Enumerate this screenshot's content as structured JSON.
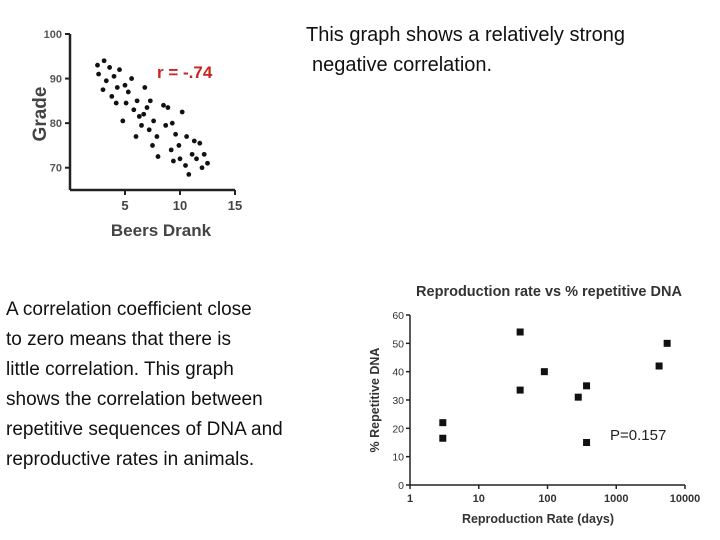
{
  "texts": {
    "top_caption": [
      "This graph shows a relatively strong",
      "negative correlation."
    ],
    "bottom_caption": [
      "A correlation coefficient close",
      "to zero means that there is",
      "little correlation. This graph",
      "shows the correlation between",
      "repetitive sequences of DNA and",
      "reproductive rates in animals."
    ]
  },
  "chart_data": [
    {
      "type": "scatter",
      "title": "",
      "xlabel": "Beers Drank",
      "ylabel": "Grade",
      "xlim": [
        0,
        15
      ],
      "ylim": [
        65,
        100
      ],
      "x_ticks": [
        5,
        10,
        15
      ],
      "y_ticks": [
        70,
        80,
        90,
        100
      ],
      "annotation": "r = -.74",
      "annotation_color": "#cc2222",
      "marker_color": "#111111",
      "grid": false,
      "points": [
        [
          2.5,
          93.0
        ],
        [
          2.6,
          91.0
        ],
        [
          3.0,
          87.5
        ],
        [
          3.1,
          94.0
        ],
        [
          3.3,
          89.5
        ],
        [
          3.6,
          92.5
        ],
        [
          3.8,
          86.0
        ],
        [
          4.0,
          90.5
        ],
        [
          4.2,
          84.5
        ],
        [
          4.3,
          88.0
        ],
        [
          4.5,
          92.0
        ],
        [
          4.8,
          80.5
        ],
        [
          5.0,
          88.5
        ],
        [
          5.1,
          84.5
        ],
        [
          5.3,
          87.0
        ],
        [
          5.6,
          90.0
        ],
        [
          5.8,
          83.0
        ],
        [
          6.0,
          77.0
        ],
        [
          6.1,
          85.0
        ],
        [
          6.3,
          81.5
        ],
        [
          6.5,
          79.5
        ],
        [
          6.7,
          82.0
        ],
        [
          6.8,
          88.0
        ],
        [
          7.0,
          83.5
        ],
        [
          7.2,
          78.5
        ],
        [
          7.3,
          85.0
        ],
        [
          7.5,
          75.0
        ],
        [
          7.6,
          80.5
        ],
        [
          7.9,
          77.0
        ],
        [
          8.0,
          72.5
        ],
        [
          8.5,
          84.0
        ],
        [
          8.7,
          79.5
        ],
        [
          8.9,
          83.5
        ],
        [
          9.2,
          74.0
        ],
        [
          9.3,
          80.0
        ],
        [
          9.4,
          71.5
        ],
        [
          9.6,
          77.5
        ],
        [
          9.9,
          75.0
        ],
        [
          10.0,
          72.0
        ],
        [
          10.2,
          82.5
        ],
        [
          10.5,
          70.5
        ],
        [
          10.6,
          77.0
        ],
        [
          10.8,
          68.5
        ],
        [
          11.1,
          73.0
        ],
        [
          11.3,
          76.0
        ],
        [
          11.5,
          72.0
        ],
        [
          11.8,
          75.5
        ],
        [
          12.0,
          70.0
        ],
        [
          12.2,
          73.0
        ],
        [
          12.5,
          71.0
        ]
      ]
    },
    {
      "type": "scatter",
      "title": "Reproduction rate vs % repetitive DNA",
      "xlabel": "Reproduction Rate (days)",
      "ylabel": "% Repetitive DNA",
      "x_scale": "log",
      "xlim": [
        1,
        10000
      ],
      "ylim": [
        0,
        60
      ],
      "x_ticks": [
        1,
        10,
        100,
        1000,
        10000
      ],
      "y_ticks": [
        0,
        10,
        20,
        30,
        40,
        50,
        60
      ],
      "annotation": "P=0.157",
      "marker_color": "#111111",
      "grid": false,
      "points": [
        [
          3,
          22
        ],
        [
          3,
          16.5
        ],
        [
          40,
          54
        ],
        [
          40,
          33.5
        ],
        [
          90,
          40
        ],
        [
          280,
          31
        ],
        [
          370,
          35
        ],
        [
          370,
          15
        ],
        [
          4200,
          42
        ],
        [
          5500,
          50
        ]
      ]
    }
  ]
}
